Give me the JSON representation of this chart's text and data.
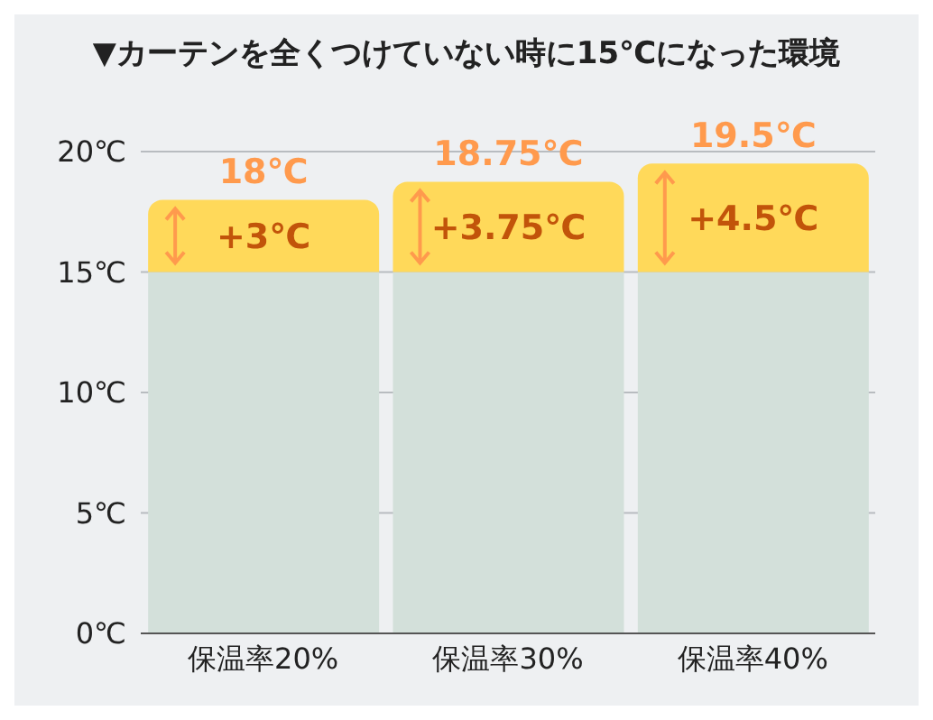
{
  "chart_data": {
    "type": "bar",
    "stacked": true,
    "title": "▼カーテンを全くつけていない時に15℃になった環境",
    "categories": [
      "保温率20%",
      "保温率30%",
      "保温率40%"
    ],
    "series": [
      {
        "color": "#d3e0da",
        "values": [
          15,
          15,
          15
        ]
      },
      {
        "color": "#ffd95a",
        "values": [
          3,
          3.75,
          4.5
        ],
        "value_labels": [
          "+3℃",
          "+3.75℃",
          "+4.5℃"
        ]
      }
    ],
    "totals": [
      "18℃",
      "18.75℃",
      "19.5℃"
    ],
    "ylim": [
      0,
      20
    ],
    "yticks": [
      {
        "value": 0,
        "label": "0℃"
      },
      {
        "value": 5,
        "label": "5℃"
      },
      {
        "value": 10,
        "label": "10℃"
      },
      {
        "value": 15,
        "label": "15℃"
      },
      {
        "value": 20,
        "label": "20℃"
      }
    ],
    "grid": "y",
    "legend": false
  }
}
